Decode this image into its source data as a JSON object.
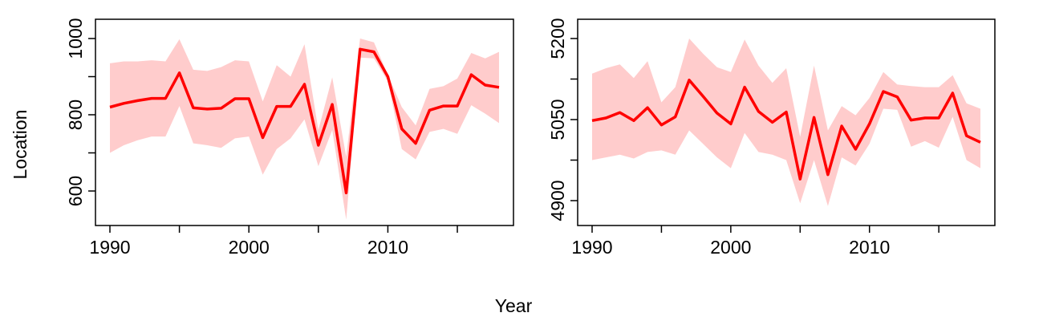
{
  "figure": {
    "xlabel": "Year",
    "ylabel": "Location"
  },
  "colors": {
    "line": "#ff0000",
    "band": "#ffcccc",
    "axis": "#000000"
  },
  "chart_data": [
    {
      "type": "line",
      "xlim": [
        1990,
        2018
      ],
      "ylim": [
        525,
        1000
      ],
      "x_ticks": [
        1990,
        1995,
        2000,
        2005,
        2010,
        2015
      ],
      "x_tick_labels": [
        "1990",
        "",
        "2000",
        "",
        "2010",
        ""
      ],
      "y_ticks": [
        600,
        700,
        800,
        900,
        1000
      ],
      "y_tick_labels": [
        "600",
        "",
        "800",
        "",
        "1000"
      ],
      "series": [
        {
          "x": [
            1990,
            1991,
            1992,
            1993,
            1994,
            1995,
            1996,
            1997,
            1998,
            1999,
            2000,
            2001,
            2002,
            2003,
            2004,
            2005,
            2006,
            2007,
            2008,
            2009,
            2010,
            2011,
            2012,
            2013,
            2014,
            2015,
            2016,
            2017,
            2018
          ],
          "y": [
            820,
            830,
            837,
            843,
            843,
            910,
            818,
            815,
            817,
            842,
            842,
            740,
            822,
            822,
            880,
            720,
            827,
            595,
            972,
            965,
            900,
            763,
            725,
            812,
            823,
            823,
            905,
            878,
            872
          ],
          "lower": [
            700,
            720,
            733,
            743,
            743,
            823,
            725,
            720,
            713,
            738,
            743,
            643,
            710,
            738,
            788,
            665,
            760,
            525,
            950,
            948,
            888,
            710,
            683,
            755,
            763,
            750,
            825,
            803,
            778
          ],
          "upper": [
            935,
            940,
            940,
            943,
            940,
            998,
            918,
            915,
            925,
            943,
            940,
            835,
            930,
            900,
            985,
            760,
            898,
            690,
            1000,
            990,
            905,
            820,
            772,
            868,
            875,
            895,
            962,
            948,
            965
          ]
        }
      ]
    },
    {
      "type": "line",
      "xlim": [
        1990,
        2018
      ],
      "ylim": [
        4890,
        5235
      ],
      "x_ticks": [
        1990,
        1995,
        2000,
        2005,
        2010,
        2015
      ],
      "x_tick_labels": [
        "1990",
        "",
        "2000",
        "",
        "2010",
        ""
      ],
      "y_ticks": [
        4900,
        4975,
        5050,
        5125,
        5200
      ],
      "y_tick_labels": [
        "4900",
        "",
        "5050",
        "",
        "5200"
      ],
      "series": [
        {
          "x": [
            1990,
            1991,
            1992,
            1993,
            1994,
            1995,
            1996,
            1997,
            1998,
            1999,
            2000,
            2001,
            2002,
            2003,
            2004,
            2005,
            2006,
            2007,
            2008,
            2009,
            2010,
            2011,
            2012,
            2013,
            2014,
            2015,
            2016,
            2017,
            2018
          ],
          "y": [
            5048,
            5053,
            5063,
            5048,
            5072,
            5040,
            5055,
            5123,
            5093,
            5062,
            5042,
            5110,
            5065,
            5045,
            5064,
            4940,
            5054,
            4948,
            5038,
            4995,
            5042,
            5102,
            5092,
            5049,
            5053,
            5053,
            5099,
            5020,
            5008
          ],
          "lower": [
            4975,
            4980,
            4985,
            4978,
            4990,
            4993,
            4985,
            5030,
            5005,
            4980,
            4960,
            5025,
            4990,
            4985,
            4975,
            4895,
            4975,
            4890,
            4980,
            4965,
            5005,
            5070,
            5068,
            5000,
            5010,
            4998,
            5055,
            4975,
            4960
          ],
          "upper": [
            5135,
            5145,
            5152,
            5127,
            5158,
            5082,
            5110,
            5200,
            5172,
            5147,
            5138,
            5198,
            5150,
            5118,
            5145,
            5018,
            5150,
            5030,
            5075,
            5058,
            5090,
            5138,
            5115,
            5112,
            5110,
            5110,
            5132,
            5080,
            5070
          ]
        }
      ]
    }
  ]
}
